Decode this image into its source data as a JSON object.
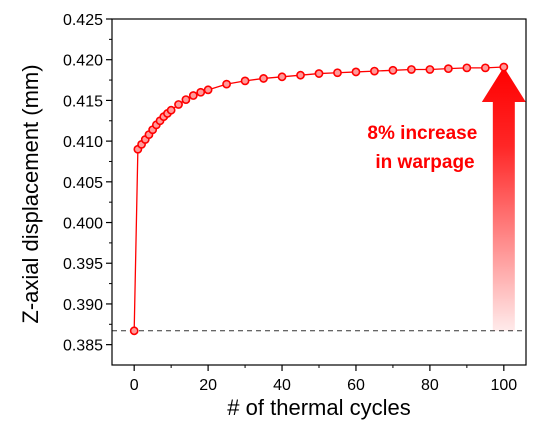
{
  "chart_data": {
    "type": "scatter",
    "xlabel": "# of thermal cycles",
    "ylabel": "Z-axial displacement (mm)",
    "xlim": [
      -6,
      106
    ],
    "ylim": [
      0.3825,
      0.425
    ],
    "xticks": [
      0,
      20,
      40,
      60,
      80,
      100
    ],
    "yticks": [
      0.385,
      0.39,
      0.395,
      0.4,
      0.405,
      0.41,
      0.415,
      0.42,
      0.425
    ],
    "xtick_labels": [
      "0",
      "20",
      "40",
      "60",
      "80",
      "100"
    ],
    "ytick_labels": [
      "0.385",
      "0.390",
      "0.395",
      "0.400",
      "0.405",
      "0.410",
      "0.415",
      "0.420",
      "0.425"
    ],
    "series": [
      {
        "style": "line-with-open-circle-markers",
        "color": "#ff0000",
        "x": [
          0,
          1,
          2,
          3,
          4,
          5,
          6,
          7,
          8,
          9,
          10,
          12,
          14,
          16,
          18,
          20,
          25,
          30,
          35,
          40,
          45,
          50,
          55,
          60,
          65,
          70,
          75,
          80,
          85,
          90,
          95,
          100
        ],
        "y": [
          0.3867,
          0.409,
          0.4096,
          0.4102,
          0.4108,
          0.4114,
          0.412,
          0.4125,
          0.413,
          0.4134,
          0.4138,
          0.4145,
          0.4151,
          0.4156,
          0.416,
          0.4163,
          0.417,
          0.4174,
          0.4177,
          0.4179,
          0.4181,
          0.4183,
          0.4184,
          0.4185,
          0.4186,
          0.4187,
          0.4188,
          0.4188,
          0.4189,
          0.419,
          0.419,
          0.4191
        ]
      }
    ],
    "reference_line": {
      "y": 0.3867,
      "style": "dashed",
      "color": "#333333"
    },
    "annotation": {
      "lines": [
        "8% increase",
        "in warpage"
      ],
      "color": "#ff0000",
      "arrow": {
        "x": 100,
        "y_from": 0.3867,
        "y_to": 0.4191,
        "direction": "up",
        "color": "#ff0000"
      }
    },
    "grid": false,
    "legend": "none"
  }
}
